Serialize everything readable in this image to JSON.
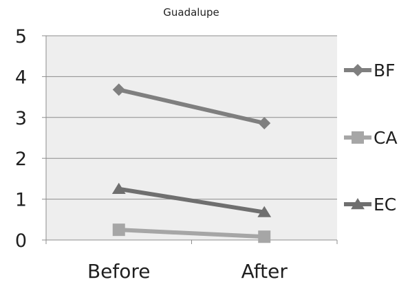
{
  "chart_data": {
    "type": "line",
    "title": "Guadalupe",
    "xlabel": "",
    "ylabel": "",
    "categories": [
      "Before",
      "After"
    ],
    "ylim": [
      0,
      5
    ],
    "yticks": [
      0,
      1,
      2,
      3,
      4,
      5
    ],
    "grid": true,
    "legend_position": "right",
    "series": [
      {
        "name": "BF",
        "values": [
          3.68,
          2.86
        ],
        "color": "#7f7f7f",
        "marker": "diamond"
      },
      {
        "name": "CA",
        "values": [
          0.25,
          0.08
        ],
        "color": "#a6a6a6",
        "marker": "square"
      },
      {
        "name": "EC",
        "values": [
          1.25,
          0.68
        ],
        "color": "#6f6f6f",
        "marker": "triangle"
      }
    ]
  }
}
